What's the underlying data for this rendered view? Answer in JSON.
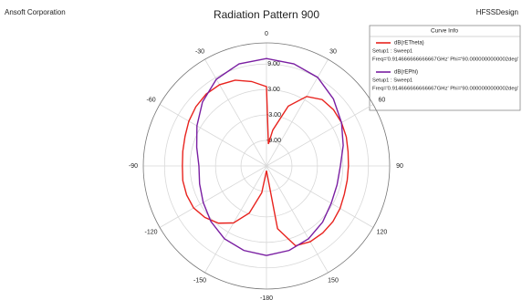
{
  "header_left": "Ansoft Corporation",
  "header_right": "HFSSDesign",
  "chart_data": {
    "type": "polar",
    "title": "Radiation Pattern 900",
    "legend_title": "Curve Info",
    "rlim": [
      -15,
      14
    ],
    "rticks": [
      {
        "value": -9,
        "label": "-9.00"
      },
      {
        "value": -3,
        "label": "-3.00"
      },
      {
        "value": 3,
        "label": "3.00"
      },
      {
        "value": 9,
        "label": "9.00"
      }
    ],
    "thetaticks": [
      0,
      30,
      60,
      90,
      120,
      150,
      -180,
      -150,
      -120,
      -90,
      -60,
      -30
    ],
    "grid": true,
    "series": [
      {
        "name": "dB(rETheta)",
        "setup": "Setup1 : Sweep1",
        "freq": "Freq='0.914666666666667GHz' Phi='90.0000000000002deg'",
        "color": "#e8231e",
        "x": [
          -180,
          -170,
          -160,
          -150,
          -140,
          -130,
          -120,
          -110,
          -100,
          -90,
          -80,
          -70,
          -60,
          -50,
          -40,
          -30,
          -20,
          -10,
          0,
          5,
          10,
          20,
          30,
          40,
          50,
          60,
          70,
          80,
          90,
          100,
          110,
          120,
          130,
          140,
          150,
          160,
          170,
          180
        ],
        "values": [
          -13.9,
          -8.6,
          -3.2,
          0.5,
          2.6,
          3.9,
          4.8,
          5.0,
          5.0,
          4.8,
          5.0,
          5.4,
          6.1,
          6.7,
          7.1,
          7.1,
          6.5,
          5.2,
          3.7,
          -9.8,
          -6.4,
          0.0,
          3.9,
          5.4,
          5.6,
          5.4,
          5.0,
          4.5,
          4.3,
          4.3,
          4.5,
          5.0,
          5.4,
          5.6,
          5.6,
          5.0,
          0.0,
          -13.9
        ]
      },
      {
        "name": "dB(rEPhi)",
        "setup": "Setup1 : Sweep1",
        "freq": "Freq='0.914666666666667GHz' Phi='90.0000000000002deg'",
        "color": "#7a1fa2",
        "x": [
          -180,
          -165,
          -150,
          -135,
          -120,
          -105,
          -90,
          -75,
          -60,
          -45,
          -30,
          -15,
          0,
          15,
          30,
          45,
          60,
          75,
          90,
          105,
          120,
          135,
          150,
          165,
          180
        ],
        "values": [
          6.1,
          5.6,
          4.8,
          3.5,
          2.2,
          1.3,
          0.9,
          2.0,
          3.9,
          6.3,
          8.6,
          9.9,
          10.3,
          9.9,
          9.1,
          7.3,
          5.4,
          3.7,
          2.4,
          2.2,
          2.6,
          3.7,
          4.8,
          5.6,
          6.1
        ]
      }
    ]
  }
}
